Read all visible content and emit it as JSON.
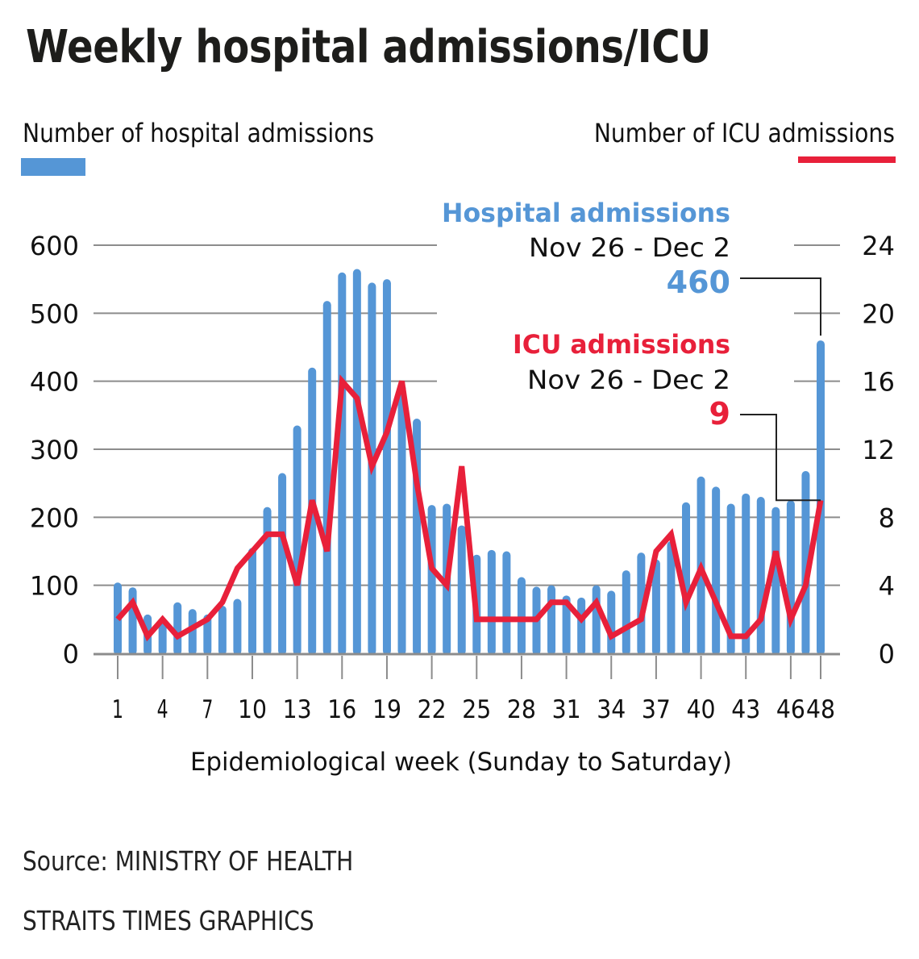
{
  "colors": {
    "hospital": "#5596d6",
    "icu": "#e8203a",
    "grid": "#8c8c8c",
    "text": "#111111"
  },
  "chart_data": {
    "type": "bar",
    "title": "Weekly hospital admissions/ICU",
    "xlabel": "Epidemiological week (Sunday to Saturday)",
    "ylabel_left": "Number of hospital admissions",
    "ylabel_right": "Number of ICU admissions",
    "ylim_left": [
      0,
      600
    ],
    "ylim_right": [
      0,
      24
    ],
    "yticks_left": [
      "0",
      "100",
      "200",
      "300",
      "400",
      "500",
      "600"
    ],
    "yticks_right": [
      "0",
      "4",
      "8",
      "12",
      "16",
      "20",
      "24"
    ],
    "xtick_labels": [
      "1",
      "4",
      "7",
      "10",
      "13",
      "16",
      "19",
      "22",
      "25",
      "28",
      "31",
      "34",
      "37",
      "40",
      "43",
      "46",
      "48"
    ],
    "x": [
      1,
      2,
      3,
      4,
      5,
      6,
      7,
      8,
      9,
      10,
      11,
      12,
      13,
      14,
      15,
      16,
      17,
      18,
      19,
      20,
      21,
      22,
      23,
      24,
      25,
      26,
      27,
      28,
      29,
      30,
      31,
      32,
      33,
      34,
      35,
      36,
      37,
      38,
      39,
      40,
      41,
      42,
      43,
      44,
      45,
      46,
      47,
      48
    ],
    "grid": true,
    "legend": "top",
    "series": [
      {
        "name": "Hospital admissions",
        "type": "bar",
        "axis": "left",
        "values": [
          104,
          97,
          57,
          48,
          75,
          65,
          57,
          70,
          80,
          155,
          215,
          265,
          335,
          420,
          518,
          560,
          565,
          545,
          550,
          395,
          345,
          218,
          220,
          188,
          145,
          152,
          150,
          112,
          98,
          100,
          85,
          82,
          100,
          92,
          122,
          148,
          138,
          165,
          222,
          260,
          245,
          220,
          235,
          230,
          215,
          225,
          268,
          460
        ]
      },
      {
        "name": "ICU admissions",
        "type": "line",
        "axis": "right",
        "values": [
          2,
          3,
          1,
          2,
          1,
          1.5,
          2,
          3,
          5,
          6,
          7,
          7,
          4,
          9,
          6,
          16,
          15,
          11,
          13,
          16,
          10,
          5,
          4,
          11,
          2,
          2,
          2,
          2,
          2,
          3,
          3,
          2,
          3,
          1,
          1.5,
          2,
          6,
          7,
          3,
          5,
          3,
          1,
          1,
          2,
          6,
          2,
          4,
          9
        ]
      }
    ],
    "annotations": [
      {
        "label": "Hospital admissions",
        "period": "Nov 26 - Dec 2",
        "value": "460",
        "week": 48
      },
      {
        "label": "ICU admissions",
        "period": "Nov 26 - Dec 2",
        "value": "9",
        "week": 48
      }
    ]
  },
  "footer": {
    "source": "Source: MINISTRY OF HEALTH",
    "credit": "STRAITS TIMES GRAPHICS"
  }
}
